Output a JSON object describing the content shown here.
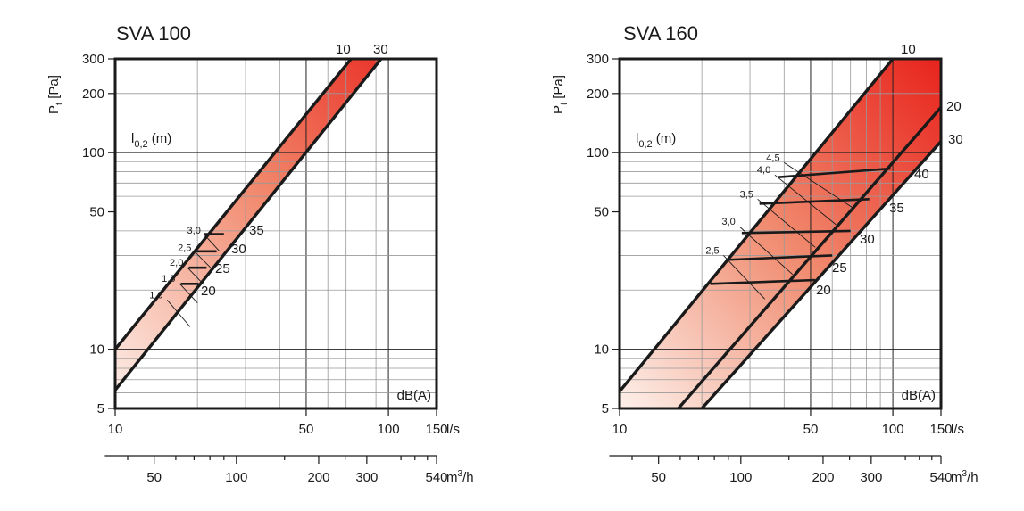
{
  "colors": {
    "gradient_light": "#fdf0ea",
    "gradient_dark": "#e8231c",
    "frame": "#1a1a1a",
    "grid_major": "#222222",
    "grid_minor": "#999999"
  },
  "chart_data": [
    {
      "type": "area",
      "title": "SVA 100",
      "ylabel_main": "P",
      "ylabel_sub": "t",
      "ylabel_unit": " [Pa]",
      "x_unit_label": "l/s",
      "x2_unit_base": "m",
      "x2_unit_sup": "3",
      "x2_unit_tail": "/h",
      "throw_label_main": "l",
      "throw_label_sub": "0,2",
      "throw_label_unit": " (m)",
      "sound_label": "dB(A)",
      "xscale": "log",
      "yscale": "log",
      "xlim": [
        10,
        150
      ],
      "ylim": [
        5,
        300
      ],
      "x_ticks": [
        10,
        50,
        100,
        150
      ],
      "x_tick_labels": [
        "10",
        "50",
        "100",
        "150"
      ],
      "y_ticks": [
        5,
        10,
        50,
        100,
        200,
        300
      ],
      "y_tick_labels": [
        "5",
        "10",
        "50",
        "100",
        "200",
        "300"
      ],
      "x2_ticks_m3h": [
        50,
        100,
        200,
        300,
        540
      ],
      "x2_tick_labels": [
        "50",
        "100",
        "200",
        "300",
        "540"
      ],
      "grid": true,
      "boundaries": [
        {
          "name": "10",
          "points": [
            [
              10,
              10
            ],
            [
              73,
              300
            ]
          ]
        },
        {
          "name": "30",
          "points": [
            [
              10,
              6.2
            ],
            [
              94,
              300
            ]
          ]
        }
      ],
      "sound_levels": [
        {
          "label": "20",
          "from": [
            17.4,
            21.5
          ],
          "to": [
            20.2,
            21.5
          ]
        },
        {
          "label": "25",
          "from": [
            18.6,
            26
          ],
          "to": [
            21.6,
            26
          ]
        },
        {
          "label": "30",
          "from": [
            19.8,
            31.5
          ],
          "to": [
            23.5,
            31.5
          ]
        },
        {
          "label": "35",
          "from": [
            21.2,
            38.5
          ],
          "to": [
            25.0,
            38.5
          ]
        }
      ],
      "throw_lines": [
        {
          "label": "1,0",
          "from": [
            15.5,
            17.8
          ],
          "to": [
            18.8,
            13.0
          ]
        },
        {
          "label": "1,5",
          "from": [
            17.2,
            21.6
          ],
          "to": [
            20.0,
            17.2
          ]
        },
        {
          "label": "2,0",
          "from": [
            18.4,
            26.0
          ],
          "to": [
            21.2,
            21.2
          ]
        },
        {
          "label": "2,5",
          "from": [
            19.7,
            31.0
          ],
          "to": [
            22.6,
            25.6
          ]
        },
        {
          "label": "3,0",
          "from": [
            21.3,
            38.0
          ],
          "to": [
            24.1,
            31.5
          ]
        }
      ],
      "boundary_labels": [
        "10",
        "30"
      ]
    },
    {
      "type": "area",
      "title": "SVA 160",
      "ylabel_main": "P",
      "ylabel_sub": "t",
      "ylabel_unit": " [Pa]",
      "x_unit_label": "l/s",
      "x2_unit_base": "m",
      "x2_unit_sup": "3",
      "x2_unit_tail": "/h",
      "throw_label_main": "l",
      "throw_label_sub": "0,2",
      "throw_label_unit": " (m)",
      "sound_label": "dB(A)",
      "xscale": "log",
      "yscale": "log",
      "xlim": [
        10,
        150
      ],
      "ylim": [
        5,
        300
      ],
      "x_ticks": [
        10,
        50,
        100,
        150
      ],
      "x_tick_labels": [
        "10",
        "50",
        "100",
        "150"
      ],
      "y_ticks": [
        5,
        10,
        50,
        100,
        200,
        300
      ],
      "y_tick_labels": [
        "5",
        "10",
        "50",
        "100",
        "200",
        "300"
      ],
      "x2_ticks_m3h": [
        50,
        100,
        200,
        300,
        540
      ],
      "x2_tick_labels": [
        "50",
        "100",
        "200",
        "300",
        "540"
      ],
      "grid": true,
      "boundaries": [
        {
          "name": "10",
          "points": [
            [
              10,
              6.1
            ],
            [
              100,
              300
            ]
          ]
        },
        {
          "name": "20",
          "points": [
            [
              16.4,
              5
            ],
            [
              150,
              170
            ]
          ]
        },
        {
          "name": "30",
          "points": [
            [
              20,
              5
            ],
            [
              150,
              114
            ]
          ]
        }
      ],
      "sound_levels": [
        {
          "label": "20",
          "from": [
            21.5,
            21.5
          ],
          "to": [
            52,
            22.5
          ]
        },
        {
          "label": "25",
          "from": [
            24.5,
            28.5
          ],
          "to": [
            60,
            30
          ]
        },
        {
          "label": "30",
          "from": [
            28,
            39
          ],
          "to": [
            70,
            40
          ]
        },
        {
          "label": "35",
          "from": [
            32.5,
            55
          ],
          "to": [
            82,
            58
          ]
        },
        {
          "label": "40",
          "from": [
            38,
            75
          ],
          "to": [
            98,
            83
          ]
        }
      ],
      "throw_lines": [
        {
          "label": "2,5",
          "from": [
            24,
            30
          ],
          "to": [
            34,
            18
          ]
        },
        {
          "label": "3,0",
          "from": [
            27.5,
            42
          ],
          "to": [
            43,
            24
          ]
        },
        {
          "label": "3,5",
          "from": [
            32,
            58
          ],
          "to": [
            52,
            33
          ]
        },
        {
          "label": "4,0",
          "from": [
            37,
            77
          ],
          "to": [
            62,
            43
          ]
        },
        {
          "label": "4,5",
          "from": [
            40,
            89
          ],
          "to": [
            72,
            52
          ]
        }
      ],
      "boundary_labels": [
        "10",
        "20",
        "30"
      ]
    }
  ]
}
